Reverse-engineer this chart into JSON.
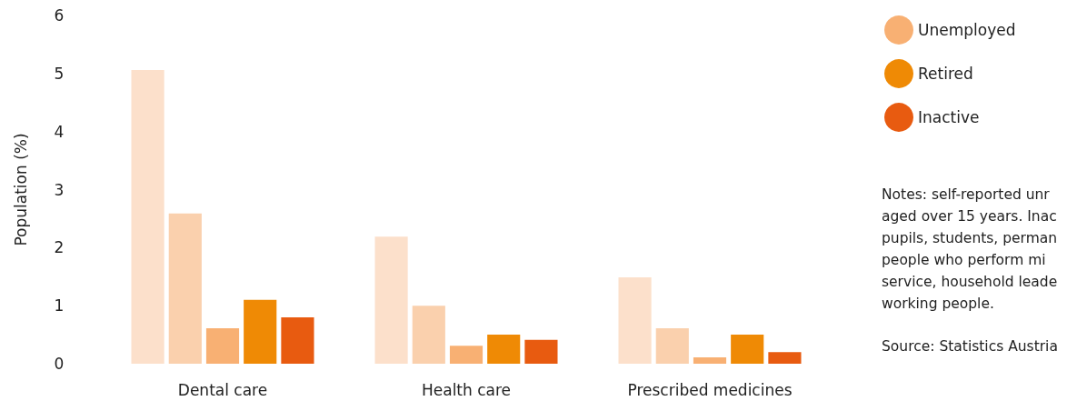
{
  "chart_data": {
    "type": "bar",
    "ylabel": "Population (%)",
    "categories": [
      "Dental care",
      "Health care",
      "Prescribed medicines"
    ],
    "series": [
      {
        "color": "#fce0cb",
        "values": [
          5.06,
          2.19,
          1.49
        ]
      },
      {
        "color": "#fad0ad",
        "values": [
          2.59,
          1.0,
          0.61
        ]
      },
      {
        "name": "Unemployed",
        "color": "#f8b073",
        "values": [
          0.61,
          0.31,
          0.11
        ]
      },
      {
        "name": "Retired",
        "color": "#ef8a05",
        "values": [
          1.1,
          0.5,
          0.5
        ]
      },
      {
        "name": "Inactive",
        "color": "#e85b10",
        "values": [
          0.8,
          0.41,
          0.2
        ]
      }
    ],
    "ylim": [
      0,
      6
    ],
    "yticks": [
      0,
      1,
      2,
      3,
      4,
      5,
      6
    ],
    "grid": false,
    "legend": "top right",
    "marker": "circle",
    "annotations": [
      "Notes: self-reported unr\naged over 15 years. Inac\npupils, students, perman\npeople who perform mi\nservice, household leade\nworking people.",
      "Source: Statistics Austria"
    ]
  }
}
